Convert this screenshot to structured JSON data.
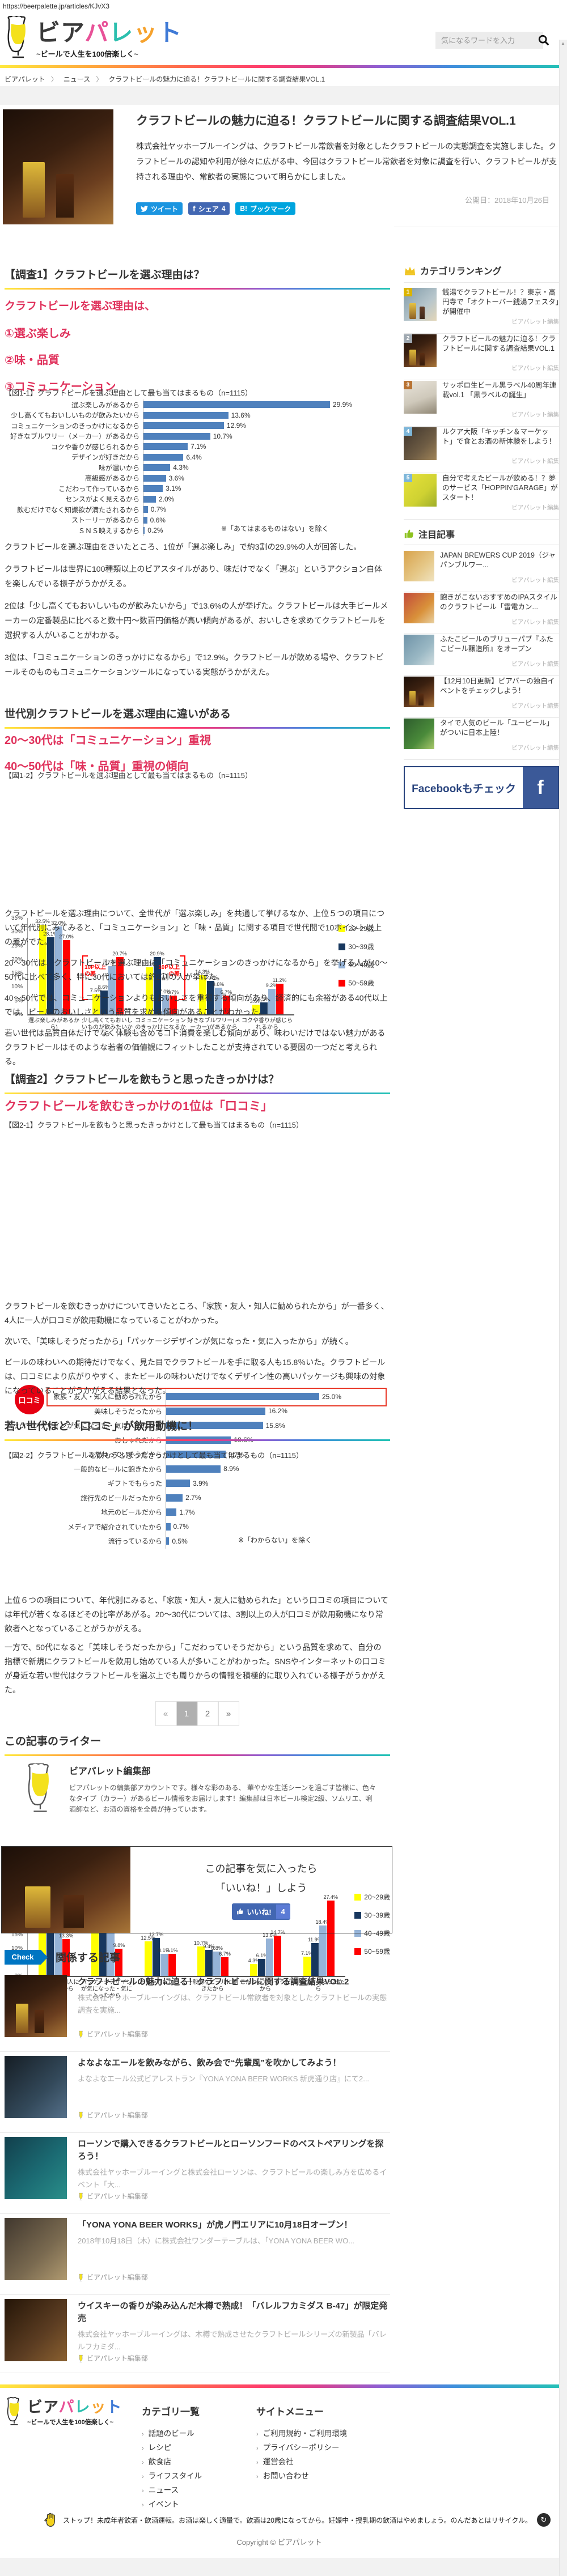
{
  "url_overlay": "https://beerpalette.jp/articles/KJvX3",
  "header": {
    "logo": {
      "chars": [
        "ビ",
        "ア",
        "パ",
        "レ",
        "ッ",
        "ト"
      ],
      "tagline": "~ビールで人生を100倍楽しく~"
    },
    "search_placeholder": "気になるワードを入力"
  },
  "breadcrumb": {
    "separator": "〉",
    "items": [
      "ビアパレット",
      "ニュース",
      "クラフトビールの魅力に迫る！クラフトビールに関する調査結果VOL.1"
    ]
  },
  "article": {
    "title": "クラフトビールの魅力に迫る！クラフトビールに関する調査結果VOL.1",
    "lead": "株式会社ヤッホーブルーイングは、クラフトビール常飲者を対象としたクラフトビールの実態調査を実施しました。クラフトビールの認知や利用が徐々に広がる中、今回はクラフトビール常飲者を対象に調査を行い、クラフトビールが支持される理由や、常飲者の実態について明らかにしました。",
    "published": "公開日：2018年10月26日",
    "share": {
      "tweet": "ツイート",
      "fb_icon": "f",
      "fb": "シェア",
      "fb_count": "4",
      "hatena_icon": "B!",
      "hatena": "ブックマーク"
    }
  },
  "sections": {
    "s1": {
      "heading": "【調査1】クラフトビールを選ぶ理由は？",
      "red_lines": [
        "クラフトビールを選ぶ理由は、",
        "①選ぶ楽しみ",
        "②味・品質",
        "③コミュニケーション"
      ],
      "paragraphs": [
        "クラフトビールを選ぶ理由をきいたところ、1位が「選ぶ楽しみ」で約3割の29.9%の人が回答した。",
        "クラフトビールは世界に100種類以上のビアスタイルがあり、味だけでなく「選ぶ」というアクション自体を楽しんでいる様子がうかがえる。",
        "2位は「少し高くてもおいしいものが飲みたいから」で13.6%の人が挙げた。クラフトビールは大手ビールメーカーの定番製品に比べると数十円～数百円価格が高い傾向があるが、おいしさを求めてクラフトビールを選択する人がいることがわかる。",
        "3位は、「コミュニケーションのきっかけになるから」で12.9%。クラフトビールが飲める場や、クラフトビールそのものもコミュニケーションツールになっている実態がうかがえた。"
      ]
    },
    "s1b": {
      "heading": "世代別クラフトビールを選ぶ理由に違いがある",
      "red_lines": [
        "20～30代は「コミュニケーション」重視",
        "40～50代は「味・品質」重視の傾向"
      ],
      "paragraphs": [
        "クラフトビールを選ぶ理由について、全世代が「選ぶ楽しみ」を共通して挙げるなか、上位５つの項目について年代別にみてみると、「コミュニケーション」と「味・品質」に関する項目で世代間で10ポイント以上の差がでた。",
        "20～30代は、クラフトビールを選ぶ理由に「コミュニケーションのきっかけになるから」を挙げる人が40～50代に比べて多く、特に30代においては約2割の人が挙げた。",
        "40～50代では、コミュニケーションよりもおいしさを重視する傾向があり、経済的にも余裕がある40代以上では、ビールのおいしさという品質を求める傾向があることがわかった。",
        "若い世代は品質自体だけでなく体験も含めてコト消費を楽しむ傾向があり、味わいだけではない魅力があるクラフトビールはそのような若者の価値観にフィットしたことが支持されている要因の一つだと考えられる。"
      ]
    },
    "s2": {
      "heading": "【調査2】クラフトビールを飲もうと思ったきっかけは？",
      "red_lines": [
        "クラフトビールを飲むきっかけの1位は「口コミ」"
      ],
      "paragraphs": [
        "クラフトビールを飲むきっかけについてきいたところ、「家族・友人・知人に勧められたから」が一番多く、4人に一人が口コミが飲用動機になっていることがわかった。",
        "次いで、「美味しそうだったから」「パッケージデザインが気になった・気に入ったから」が続く。",
        "ビールの味わいへの期待だけでなく、見た目でクラフトビールを手に取る人も15.8％いた。クラフトビールは、口コミにより広がりやすく、またビールの味わいだけでなくデザイン性の高いパッケージも興味の対象になっていることがうかがえる結果となった。"
      ]
    },
    "s2b": {
      "heading": "若い世代ほど「口コミ」が飲用動機に！",
      "paragraphs": [
        "上位６つの項目について、年代別にみると、「家族・知人・友人に勧められた」という口コミの項目については年代が若くなるほどその比率があがる。20～30代については、3割以上の人が口コミが飲用動機になり常飲者へとなっていることがうかがえる。",
        "一方で、50代になると「美味しそうだったから」「こだわっていそうだから」という品質を求めて、自分の指標で新規にクラフトビールを飲用し始めている人が多いことがわかった。SNSやインターネットの口コミが身近な若い世代はクラフトビールを選ぶ上でも周りからの情報を積極的に取り入れている様子がうかがえた。"
      ]
    }
  },
  "chart_data": [
    {
      "id": "fig1-1",
      "type": "bar",
      "orientation": "horizontal",
      "title": "【図1-1】クラフトビールを選ぶ理由として最も当てはまるもの（n=1115）",
      "categories": [
        "選ぶ楽しみがあるから",
        "少し高くてもおいしいものが飲みたいから",
        "コミュニケーションのきっかけになるから",
        "好きなブルワリー（メーカー）があるから",
        "コクや香りが感じられるから",
        "デザインが好きだから",
        "味が濃いから",
        "高級感があるから",
        "こだわって作っているから",
        "センスがよく見えるから",
        "飲むだけでなく知識欲が満たされるから",
        "ストーリーがあるから",
        "ＳＮＳ映えするから"
      ],
      "values": [
        29.9,
        13.6,
        12.9,
        10.7,
        7.1,
        6.4,
        4.3,
        3.6,
        3.1,
        2.0,
        0.7,
        0.6,
        0.2
      ],
      "unit": "%",
      "bar_color": "#4f81bd",
      "note": "※「あてはまるものはない」を除く",
      "xlim": [
        0,
        35
      ]
    },
    {
      "id": "fig1-2",
      "type": "bar",
      "orientation": "vertical",
      "grouped": true,
      "title": "【図1-2】クラフトビールを選ぶ理由として最も当てはまるもの（n=1115）",
      "categories": [
        "選ぶ楽しみがあるから)",
        "少し高くてもおいしいものが飲みたいから",
        "コミュニケーションのきっかけになるから",
        "好きなブルワリー(メーカー)があるから",
        "コクや香りが感じられるから"
      ],
      "series": [
        {
          "name": "20~29歳",
          "color": "#ffff00",
          "values": [
            32.5,
            7.5,
            17.1,
            14.3,
            3.6
          ]
        },
        {
          "name": "30~39歳",
          "color": "#17375e",
          "values": [
            28.1,
            8.6,
            20.9,
            12.2,
            4.3
          ]
        },
        {
          "name": "40~49歳",
          "color": "#95b3d7",
          "values": [
            32.0,
            17.6,
            7.0,
            9.6,
            9.2
          ]
        },
        {
          "name": "50~59歳",
          "color": "#ff0000",
          "values": [
            27.0,
            20.7,
            6.7,
            6.7,
            11.2
          ]
        }
      ],
      "ylim": [
        0,
        35
      ],
      "ytick_step": 5,
      "legend_position": "right",
      "annotations": [
        {
          "text": "10P以上の差",
          "group": 1,
          "side": "left"
        },
        {
          "text": "10P以上の差",
          "group": 2,
          "side": "right"
        }
      ]
    },
    {
      "id": "fig2-1",
      "type": "bar",
      "orientation": "horizontal",
      "title": "【図2-1】クラフトビールを飲もうと思ったきっかけとして最も当てはまるもの（n=1115）",
      "categories": [
        "家族・友人・知人に勧められたから",
        "美味しそうだったから",
        "パッケージデザインが気になった・気に入ったから",
        "おしゃれだから",
        "こだわっていそうだから",
        "一般的なビールに飽きたから",
        "ギフトでもらった",
        "旅行先のビールだったから",
        "地元のビールだから",
        "メディアで紹介されていたから",
        "流行っているから"
      ],
      "values": [
        25.0,
        16.2,
        15.8,
        10.6,
        9.7,
        8.9,
        3.9,
        2.7,
        1.7,
        0.7,
        0.5
      ],
      "unit": "%",
      "bar_color": "#4f81bd",
      "note": "※「わからない」を除く",
      "highlight": {
        "index": 0,
        "badge": "口コミ"
      },
      "xlim": [
        0,
        30
      ]
    },
    {
      "id": "fig2-2",
      "type": "bar",
      "orientation": "vertical",
      "grouped": true,
      "title": "【図2-2】クラフトビールを飲もうと思ったきっかけとして最も当てはまるもの（n=1115）",
      "categories": [
        "家族・友人・知人に勧められたから",
        "パッケージデザインが気になった・気に入ったから",
        "おしゃれだから",
        "一般的なビールに飽きたから",
        "こだわっていそうだから",
        "美味しそうだったから"
      ],
      "series": [
        {
          "name": "20~29歳",
          "color": "#ffff00",
          "values": [
            33.2,
            21.8,
            12.5,
            10.7,
            4.3,
            7.1
          ]
        },
        {
          "name": "30~39歳",
          "color": "#17375e",
          "values": [
            31.3,
            15.5,
            13.7,
            9.4,
            6.1,
            11.9
          ]
        },
        {
          "name": "40~49歳",
          "color": "#95b3d7",
          "values": [
            22.4,
            16.2,
            8.1,
            8.8,
            13.6,
            18.4
          ]
        },
        {
          "name": "50~59歳",
          "color": "#ff0000",
          "values": [
            13.3,
            9.8,
            8.1,
            6.7,
            14.7,
            27.4
          ]
        }
      ],
      "ylim": [
        0,
        35
      ],
      "ytick_step": 5,
      "legend_position": "right"
    }
  ],
  "pagination": {
    "prev": "«",
    "pages": [
      "1",
      "2"
    ],
    "active": "1",
    "next": "»"
  },
  "writer": {
    "section_heading": "この記事のライター",
    "name": "ビアパレット編集部",
    "bio": "ビアパレットの編集部アカウントです。様々な彩のある、 華やかな生活シーンを過ごす皆様に、色々なタイプ（カラー）があるビール情報をお届けします！編集部は日本ビール検定2級、ソムリエ、唎酒師など、お酒の資格を全員が持っています。"
  },
  "like_box": {
    "line1": "この記事を気に入ったら",
    "line2": "「いいね！」しよう",
    "button": "いいね!",
    "count": "4"
  },
  "related": {
    "badge": "Check",
    "heading": "関係する記事",
    "items": [
      {
        "title": "クラフトビールの魅力に迫る！クラフトビールに関する調査結果VOL.2",
        "excerpt": "株式会社ヤッホーブルーイングは、クラフトビール常飲者を対象としたクラフトビールの実態調査を実施...",
        "author": "ビアパレット編集部"
      },
      {
        "title": "よなよなエールを飲みながら、飲み会で“先輩風”を吹かしてみよう！",
        "excerpt": "よなよなエール公式ビアレストラン『YONA YONA BEER WORKS 新虎通り店』にて2...",
        "author": "ビアパレット編集部"
      },
      {
        "title": "ローソンで購入できるクラフトビールとローソンフードのベストペアリングを探ろう！",
        "excerpt": "株式会社ヤッホーブルーイングと株式会社ローソンは、クラフトビールの楽しみ方を広めるイベント「大...",
        "author": "ビアパレット編集部"
      },
      {
        "title": "「YONA YONA BEER WORKS」が虎ノ門エリアに10月18日オープン！",
        "excerpt": "2018年10月18日（木）に株式会社ワンダーテーブルは、「YONA YONA BEER WO...",
        "author": "ビアパレット編集部"
      },
      {
        "title": "ウイスキーの香りが染み込んだ木樽で熟成！「バレルフカミダス B-47」が限定発売",
        "excerpt": "株式会社ヤッホーブルーイングは、木樽で熟成させたクラフトビールシリーズの新製品「バレルフカミダ...",
        "author": "ビアパレット編集部"
      }
    ]
  },
  "sidebar": {
    "ranking": {
      "heading": "カテゴリランキング",
      "items": [
        {
          "rank": "1",
          "title": "銭湯でクラフトビール！？東京・高円寺で「オクトーバー銭湯フェスタ」が開催中",
          "author": "ビアパレット編集"
        },
        {
          "rank": "2",
          "title": "クラフトビールの魅力に迫る！クラフトビールに関する調査結果VOL.1",
          "author": "ビアパレット編集"
        },
        {
          "rank": "3",
          "title": "サッポロ生ビール黒ラベル40周年連載vol.1 「黒ラベルの誕生」",
          "author": "ビアパレット編集"
        },
        {
          "rank": "4",
          "title": "ルクア大阪「キッチン＆マーケット」で食とお酒の新体験をしよう！",
          "author": "ビアパレット編集"
        },
        {
          "rank": "5",
          "title": "自分で考えたビールが飲める！？夢のサービス「HOPPIN'GARAGE」がスタート！",
          "author": "ビアパレット編集"
        }
      ]
    },
    "featured": {
      "heading": "注目記事",
      "items": [
        {
          "title": "JAPAN BREWERS CUP 2019（ジャパンブルワー...",
          "author": "ビアパレット編集"
        },
        {
          "title": "飽きがこないおすすめのIPAスタイルのクラフトビール「雷電カン...",
          "author": "ビアパレット編集"
        },
        {
          "title": "ふたこビールのブリューパブ『ふたこビール醸造所』をオープン",
          "author": "ビアパレット編集"
        },
        {
          "title": "【12月10日更新】ビアバーの独自イベントをチェックしよう！",
          "author": "ビアパレット編集"
        },
        {
          "title": "タイで人気のビール「ユービール」がついに日本上陸！",
          "author": "ビアパレット編集"
        }
      ]
    },
    "facebook": {
      "label": "Facebookもチェック",
      "icon": "f"
    }
  },
  "footer": {
    "category_heading": "カテゴリ一覧",
    "categories": [
      "話題のビール",
      "レシピ",
      "飲食店",
      "ライフスタイル",
      "ニュース",
      "イベント"
    ],
    "sitemenu_heading": "サイトメニュー",
    "sitemenu": [
      "ご利用規約・ご利用環境",
      "プライバシーポリシー",
      "運営会社",
      "お問い合わせ"
    ],
    "notice": "ストップ！未成年者飲酒・飲酒運転。お酒は楽しく適量で。飲酒は20歳になってから。妊娠中・授乳期の飲酒はやめましょう。のんだあとはリサイクル。",
    "copyright": "Copyright © ビアパレット"
  },
  "colors": {
    "accent_red": "#e0325c",
    "bar_blue": "#4f81bd",
    "badge_red": "#e60012",
    "twitter_blue": "#1b95e0",
    "facebook_blue": "#3b5998",
    "hatena_blue": "#00a4de",
    "check_blue": "#0075c2"
  }
}
